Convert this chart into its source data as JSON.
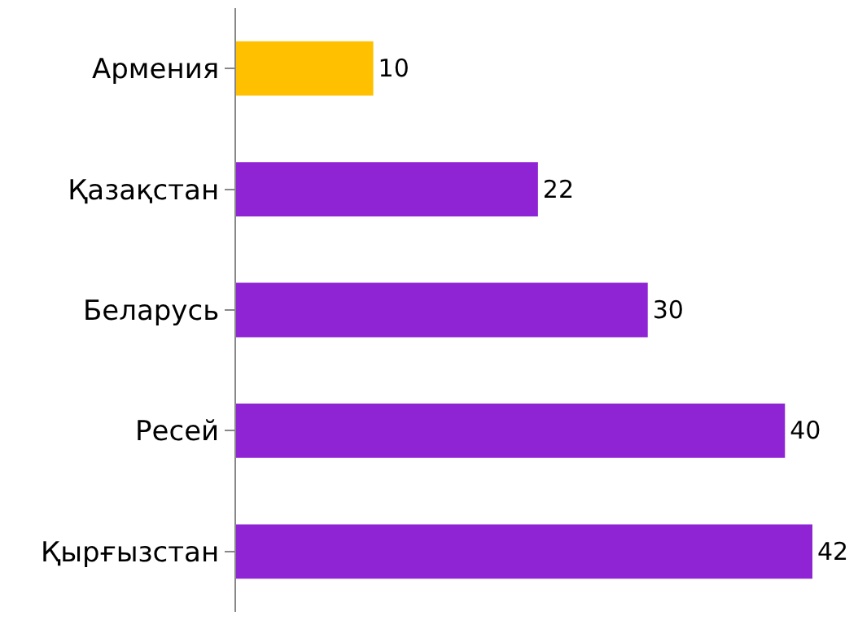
{
  "chart_data": {
    "type": "bar",
    "orientation": "horizontal",
    "categories": [
      "Армения",
      "Қазақстан",
      "Беларусь",
      "Ресей",
      "Қырғызстан"
    ],
    "values": [
      10,
      22,
      30,
      40,
      42
    ],
    "colors": [
      "#ffc000",
      "#8e24d4",
      "#8e24d4",
      "#8e24d4",
      "#8e24d4"
    ],
    "data_labels": true,
    "legend": false
  }
}
